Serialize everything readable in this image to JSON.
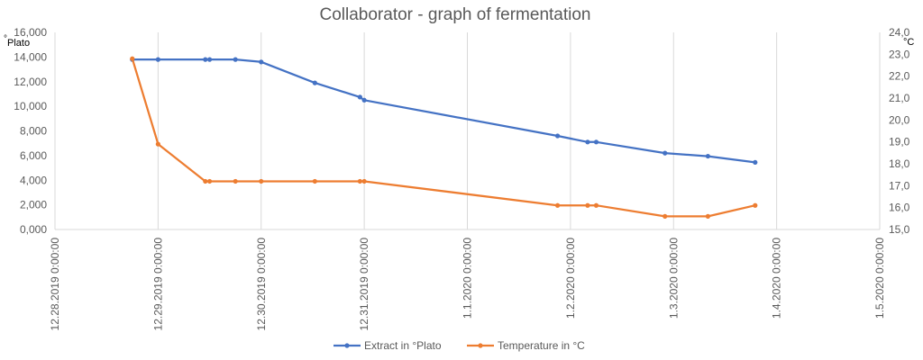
{
  "chart_data": {
    "type": "line",
    "title": "Collaborator - graph of fermentation",
    "y_left_unit": "°Plato",
    "y_right_unit": "°C",
    "ylim_left": [
      0,
      16000
    ],
    "ylim_right": [
      15.0,
      24.0
    ],
    "y_left_ticks": [
      "0,000",
      "2,000",
      "4,000",
      "6,000",
      "8,000",
      "10,000",
      "12,000",
      "14,000",
      "16,000"
    ],
    "y_right_ticks": [
      "15,0",
      "16,0",
      "17,0",
      "18,0",
      "19,0",
      "20,0",
      "21,0",
      "22,0",
      "23,0",
      "24,0"
    ],
    "x_ticks": [
      "12.28.2019 0:00:00",
      "12.29.2019 0:00:00",
      "12.30.2019 0:00:00",
      "12.31.2019 0:00:00",
      "1.1.2020 0:00:00",
      "1.2.2020 0:00:00",
      "1.3.2020 0:00:00",
      "1.4.2020 0:00:00",
      "1.5.2020 0:00:00"
    ],
    "grid": "vertical",
    "legend_position": "bottom",
    "series": [
      {
        "name": "Extract in °Plato",
        "axis": "left",
        "color": "#4472C4",
        "x": [
          "2019-12-28 18:00",
          "2019-12-29 00:00",
          "2019-12-29 11:00",
          "2019-12-29 12:00",
          "2019-12-29 18:00",
          "2019-12-30 00:00",
          "2019-12-30 12:30",
          "2019-12-30 23:00",
          "2019-12-31 00:00",
          "2020-01-01 21:00",
          "2020-01-02 04:00",
          "2020-01-02 06:00",
          "2020-01-02 22:00",
          "2020-01-03 08:00",
          "2020-01-03 19:00"
        ],
        "values": [
          13800,
          13800,
          13800,
          13800,
          13800,
          13600,
          11900,
          10750,
          10500,
          7600,
          7100,
          7100,
          6200,
          5950,
          5450
        ]
      },
      {
        "name": "Temperature in °C",
        "axis": "right",
        "color": "#ED7D31",
        "x": [
          "2019-12-28 18:00",
          "2019-12-29 00:00",
          "2019-12-29 11:00",
          "2019-12-29 12:00",
          "2019-12-29 18:00",
          "2019-12-30 00:00",
          "2019-12-30 12:30",
          "2019-12-30 23:00",
          "2019-12-31 00:00",
          "2020-01-01 21:00",
          "2020-01-02 04:00",
          "2020-01-02 06:00",
          "2020-01-02 22:00",
          "2020-01-03 08:00",
          "2020-01-03 19:00"
        ],
        "values": [
          22.8,
          18.9,
          17.2,
          17.2,
          17.2,
          17.2,
          17.2,
          17.2,
          17.2,
          16.1,
          16.1,
          16.1,
          15.6,
          15.6,
          16.1
        ]
      }
    ]
  }
}
